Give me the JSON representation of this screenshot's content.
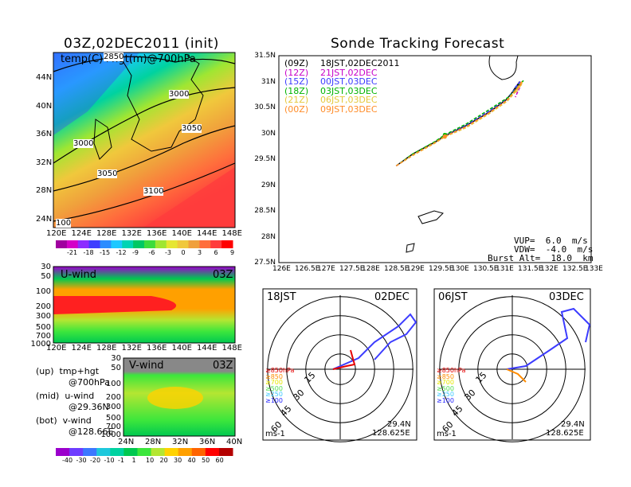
{
  "colors": {
    "temp_scale": [
      "#a0009f",
      "#d400c8",
      "#8c2cff",
      "#3e3eff",
      "#2c8cff",
      "#1ec8ff",
      "#00d4b4",
      "#00c864",
      "#3cdc3c",
      "#a0e632",
      "#e6e632",
      "#f0c83c",
      "#f0a03c",
      "#ff6e3c",
      "#ff3c3c",
      "#ff0000"
    ],
    "wind_scale": [
      "#9b00cc",
      "#6e3cff",
      "#3c78ff",
      "#1ec8dc",
      "#00d2a0",
      "#00c850",
      "#3ce63c",
      "#b4e632",
      "#ffd200",
      "#ffa000",
      "#ff6400",
      "#ff0000",
      "#b40000"
    ],
    "track": {
      "09Z": "#000000",
      "12Z": "#c800c8",
      "15Z": "#3c3cff",
      "18Z": "#00b400",
      "21Z": "#e6c83c",
      "00Z": "#ff8c28"
    },
    "hodo": [
      "#e60000",
      "#ff8c00",
      "#e6e600",
      "#50dc50",
      "#3cc8ff",
      "#2828ff"
    ]
  },
  "main": {
    "title": "03Z,02DEC2011 (init)",
    "overlay_label": "temp(C)+hgt(m)@700hPa",
    "contour_labels": [
      "2850",
      "3000",
      "3000",
      "3050",
      "3050",
      "3100",
      "100"
    ],
    "lat_ticks": [
      "44N",
      "40N",
      "36N",
      "32N",
      "28N",
      "24N"
    ],
    "lon_ticks": [
      "120E",
      "124E",
      "128E",
      "132E",
      "136E",
      "140E",
      "144E",
      "148E"
    ],
    "colorbar_labels": [
      "-21",
      "-18",
      "-15",
      "-12",
      "-9",
      "-6",
      "-3",
      "0",
      "3",
      "6",
      "9"
    ]
  },
  "uwind": {
    "label": "U-wind",
    "time": "03Z",
    "p_ticks": [
      "30",
      "50",
      "100",
      "200",
      "300",
      "500",
      "700",
      "1000"
    ],
    "lon_ticks": [
      "120E",
      "124E",
      "128E",
      "132E",
      "136E",
      "140E",
      "144E",
      "148E"
    ]
  },
  "vwind": {
    "label": "V-wind",
    "time": "03Z",
    "p_ticks": [
      "30",
      "50",
      "100",
      "200",
      "300",
      "500",
      "700",
      "1000"
    ],
    "lat_ticks": [
      "24N",
      "28N",
      "32N",
      "36N",
      "40N"
    ],
    "colorbar_labels": [
      "-40",
      "-30",
      "-20",
      "-10",
      "-1",
      "1",
      "10",
      "20",
      "30",
      "40",
      "50",
      "60"
    ]
  },
  "legend_notes": [
    {
      "line1": "(up)  tmp+hgt",
      "line2": "@700hPa"
    },
    {
      "line1": "(mid)  u-wind",
      "line2": "@29.36N"
    },
    {
      "line1": "(bot)  v-wind",
      "line2": "@128.66E"
    }
  ],
  "tracking": {
    "title": "Sonde Tracking Forecast",
    "lat_ticks": [
      "31.5N",
      "31N",
      "30.5N",
      "30N",
      "29.5N",
      "29N",
      "28.5N",
      "28N",
      "27.5N"
    ],
    "lon_ticks": [
      "126E",
      "126.5E",
      "127E",
      "127.5E",
      "128E",
      "128.5E",
      "129E",
      "129.5E",
      "130E",
      "130.5E",
      "131E",
      "131.5E",
      "132E",
      "132.5E",
      "133E"
    ],
    "legend": [
      {
        "code": "(09Z)",
        "label": "18JST,02DEC2011",
        "key": "09Z"
      },
      {
        "code": "(12Z)",
        "label": "21JST,02DEC",
        "key": "12Z"
      },
      {
        "code": "(15Z)",
        "label": "00JST,03DEC",
        "key": "15Z"
      },
      {
        "code": "(18Z)",
        "label": "03JST,03DEC",
        "key": "18Z"
      },
      {
        "code": "(21Z)",
        "label": "06JST,03DEC",
        "key": "21Z"
      },
      {
        "code": "(00Z)",
        "label": "09JST,03DEC",
        "key": "00Z"
      }
    ],
    "params": [
      "VUP=  6.0  m/s",
      "VDW=  -4.0  m/s",
      "Burst Alt=  18.0  km"
    ]
  },
  "chart_data": [
    {
      "type": "line",
      "title": "Sonde Tracking Forecast",
      "xlim": [
        126,
        133
      ],
      "ylim": [
        27.5,
        31.5
      ],
      "series": [
        {
          "name": "(09Z) 18JST,02DEC2011",
          "x": [
            128.63,
            129.0,
            129.5,
            129.72,
            130.2,
            130.7,
            131.1,
            131.38,
            131.4,
            131.25
          ],
          "y": [
            29.37,
            29.6,
            29.83,
            29.95,
            30.15,
            30.4,
            30.65,
            30.95,
            31.0,
            30.82
          ]
        },
        {
          "name": "(12Z) 21JST,02DEC",
          "x": [
            128.63,
            129.0,
            129.5,
            129.72,
            130.2,
            130.7,
            131.1,
            131.4,
            131.45,
            131.3
          ],
          "y": [
            29.37,
            29.58,
            29.82,
            29.94,
            30.12,
            30.38,
            30.62,
            30.92,
            30.98,
            30.7
          ]
        },
        {
          "name": "(15Z) 00JST,03DEC",
          "x": [
            128.63,
            129.0,
            129.5,
            129.72,
            130.2,
            130.7,
            131.1,
            131.4,
            131.42,
            131.27
          ],
          "y": [
            29.37,
            29.59,
            29.83,
            29.96,
            30.16,
            30.42,
            30.66,
            30.96,
            31.01,
            30.86
          ]
        },
        {
          "name": "(18Z) 03JST,03DEC",
          "x": [
            128.63,
            129.0,
            129.5,
            129.72,
            130.2,
            130.7,
            131.15,
            131.45,
            131.48,
            131.33
          ],
          "y": [
            29.37,
            29.6,
            29.84,
            29.97,
            30.18,
            30.45,
            30.7,
            30.98,
            31.02,
            30.88
          ]
        },
        {
          "name": "(21Z) 06JST,03DEC",
          "x": [
            128.63,
            129.0,
            129.5,
            129.72,
            130.2,
            130.7,
            131.12,
            131.43,
            131.46,
            131.3
          ],
          "y": [
            29.37,
            29.57,
            29.81,
            29.93,
            30.11,
            30.37,
            30.62,
            30.93,
            30.99,
            30.77
          ]
        },
        {
          "name": "(00Z) 09JST,03DEC",
          "x": [
            128.63,
            129.0,
            129.5,
            129.72,
            130.2,
            130.7,
            131.1,
            131.42,
            131.44,
            131.28
          ],
          "y": [
            29.37,
            29.58,
            29.82,
            29.94,
            30.13,
            30.39,
            30.63,
            30.94,
            31.0,
            30.8
          ]
        }
      ]
    }
  ],
  "hodographs": [
    {
      "left": "18JST",
      "right": "02DEC",
      "rings": [
        "15",
        "30",
        "45",
        "60"
      ],
      "legend": [
        "≥850hPa",
        "≥850",
        "≥700",
        "≥500",
        "≥250",
        "≥100"
      ],
      "unit": "ms-1",
      "lat": "29.4N",
      "lon": "128.625E"
    },
    {
      "left": "06JST",
      "right": "03DEC",
      "rings": [
        "15",
        "30",
        "45",
        "60"
      ],
      "legend": [
        "≥850hPa",
        "≥850",
        "≥700",
        "≥500",
        "≥250",
        "≥100"
      ],
      "unit": "ms-1",
      "lat": "29.4N",
      "lon": "128.625E"
    }
  ]
}
